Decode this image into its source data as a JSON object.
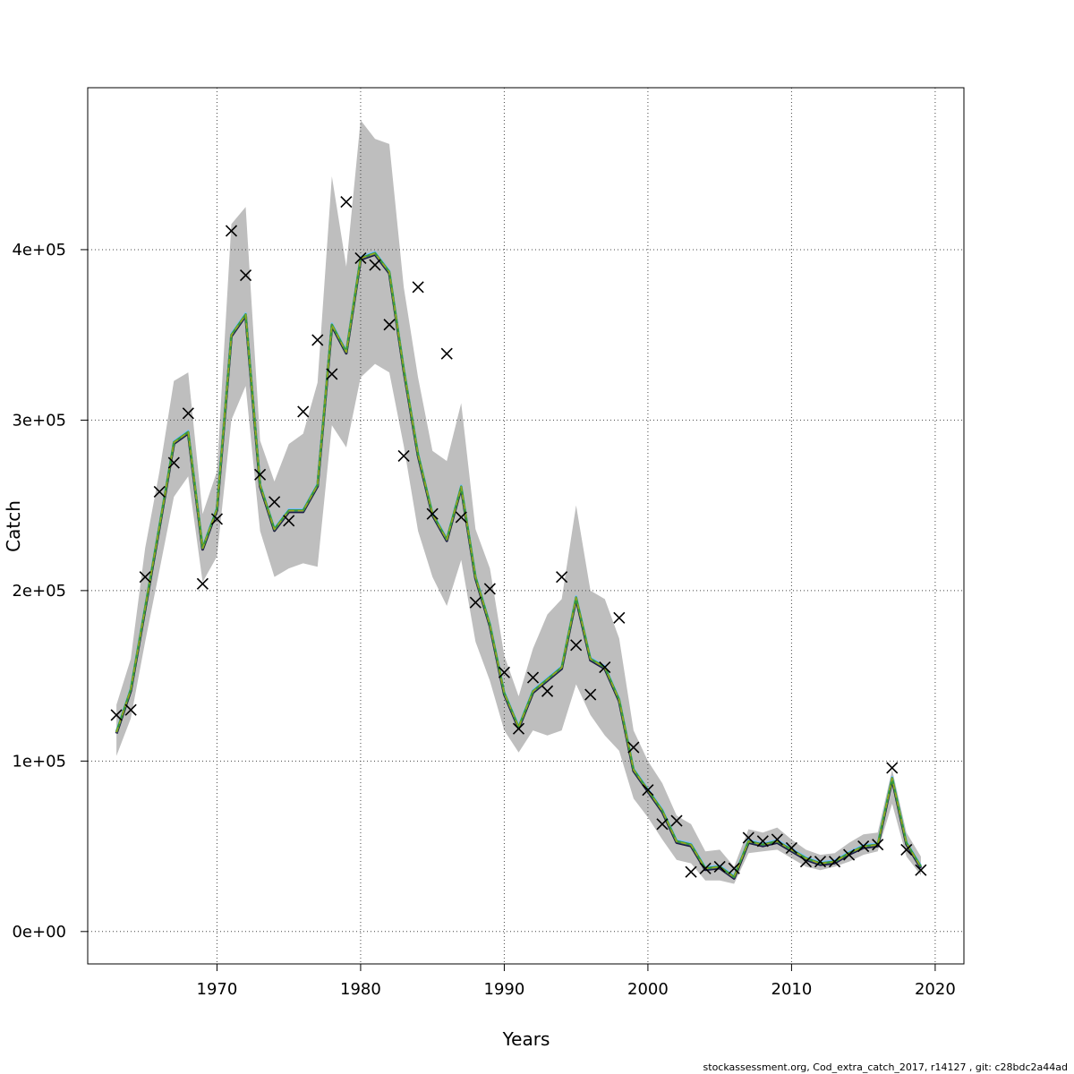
{
  "chart_data": {
    "type": "line",
    "xlabel": "Years",
    "ylabel": "Catch",
    "xlim": [
      1961,
      2022
    ],
    "ylim": [
      -19000,
      495000
    ],
    "xticks": [
      1970,
      1980,
      1990,
      2000,
      2010,
      2020
    ],
    "yticks": [
      0,
      100000,
      200000,
      300000,
      400000
    ],
    "ytick_labels": [
      "0e+00",
      "1e+05",
      "2e+05",
      "3e+05",
      "4e+05"
    ],
    "grid": true,
    "footer": "stockassessment.org, Cod_extra_catch_2017, r14127 , git: c28bdc2a44ad",
    "colors": {
      "band": "#bebebe",
      "observed_marker": "#000000",
      "line_dark": "#1a1a3a",
      "line_navy": "#2c2c8c",
      "line_blue": "#2f6fd8",
      "line_light_blue": "#79c0ff",
      "line_green": "#3a9a3a",
      "line_olive": "#9aa51f"
    },
    "x": [
      1963,
      1964,
      1965,
      1966,
      1967,
      1968,
      1969,
      1970,
      1971,
      1972,
      1973,
      1974,
      1975,
      1976,
      1977,
      1978,
      1979,
      1980,
      1981,
      1982,
      1983,
      1984,
      1985,
      1986,
      1987,
      1988,
      1989,
      1990,
      1991,
      1992,
      1993,
      1994,
      1995,
      1996,
      1997,
      1998,
      1999,
      2000,
      2001,
      2002,
      2003,
      2004,
      2005,
      2006,
      2007,
      2008,
      2009,
      2010,
      2011,
      2012,
      2013,
      2014,
      2015,
      2016,
      2017,
      2018,
      2019
    ],
    "fitted": [
      117000,
      142000,
      190000,
      238000,
      287000,
      293000,
      225000,
      248000,
      350000,
      362000,
      262000,
      236000,
      247000,
      247000,
      262000,
      356000,
      340000,
      395000,
      398000,
      387000,
      330000,
      280000,
      245000,
      230000,
      261000,
      208000,
      180000,
      140000,
      120000,
      141000,
      148000,
      155000,
      196000,
      160000,
      155000,
      136000,
      95000,
      83000,
      71000,
      53000,
      51000,
      37000,
      38000,
      32000,
      53000,
      51000,
      53000,
      48000,
      43000,
      40000,
      41000,
      46000,
      50000,
      51000,
      90000,
      52000,
      38000
    ],
    "lower": [
      103000,
      125000,
      170000,
      212000,
      255000,
      267000,
      205000,
      220000,
      300000,
      320000,
      235000,
      208000,
      213000,
      216000,
      214000,
      297000,
      284000,
      325000,
      333000,
      328000,
      285000,
      235000,
      208000,
      191000,
      218000,
      170000,
      147000,
      118000,
      105000,
      118000,
      115000,
      118000,
      145000,
      127000,
      115000,
      106000,
      78000,
      67000,
      54000,
      42000,
      40000,
      30000,
      30000,
      28000,
      46000,
      47000,
      48000,
      43000,
      38000,
      36000,
      38000,
      41000,
      45000,
      47000,
      75000,
      44000,
      33000
    ],
    "upper": [
      133000,
      160000,
      225000,
      270000,
      323000,
      328000,
      245000,
      270000,
      415000,
      425000,
      288000,
      264000,
      286000,
      292000,
      322000,
      443000,
      390000,
      476000,
      465000,
      462000,
      378000,
      325000,
      282000,
      276000,
      310000,
      236000,
      213000,
      162000,
      138000,
      166000,
      186000,
      195000,
      250000,
      200000,
      195000,
      172000,
      118000,
      100000,
      87000,
      68000,
      63000,
      47000,
      48000,
      38000,
      60000,
      58000,
      61000,
      54000,
      48000,
      45000,
      46000,
      52000,
      57000,
      58000,
      95000,
      58000,
      44000
    ],
    "observed": [
      127000,
      130000,
      208000,
      258000,
      275000,
      304000,
      204000,
      242000,
      411000,
      385000,
      268000,
      252000,
      241000,
      305000,
      347000,
      327000,
      428000,
      395000,
      391000,
      356000,
      279000,
      378000,
      245000,
      339000,
      243000,
      193000,
      201000,
      152000,
      119000,
      149000,
      141000,
      208000,
      168000,
      139000,
      155000,
      184000,
      108000,
      83000,
      63000,
      65000,
      35000,
      37000,
      38000,
      37000,
      55000,
      53000,
      54000,
      49000,
      41000,
      41000,
      41000,
      45000,
      50000,
      51000,
      96000,
      48000,
      36000
    ]
  }
}
